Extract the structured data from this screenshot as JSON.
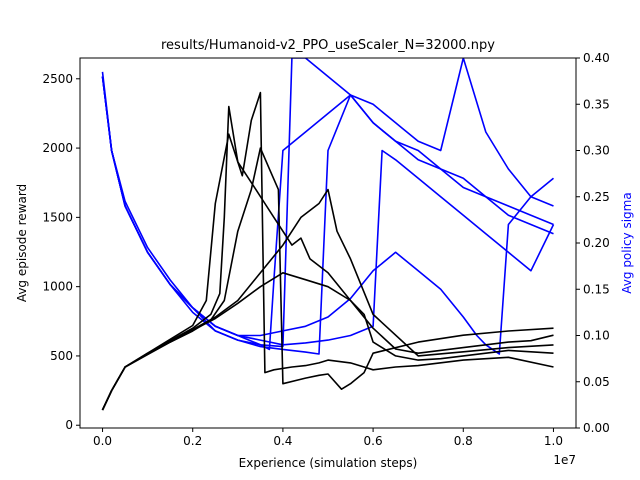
{
  "chart_data": {
    "type": "line",
    "title": "results/Humanoid-v2_PPO_useScaler_N=32000.npy",
    "xlabel": "Experience (simulation steps)",
    "ylabel_left": "Avg episode reward",
    "ylabel_right": "Avg policy sigma",
    "x_multiplier_label": "1e7",
    "xlim": [
      -0.05,
      1.05
    ],
    "ylim_left": [
      -20,
      2650
    ],
    "ylim_right": [
      0.0,
      0.4
    ],
    "xticks": [
      0.0,
      0.2,
      0.4,
      0.6,
      0.8,
      1.0
    ],
    "xtick_labels": [
      "0.0",
      "0.2",
      "0.4",
      "0.6",
      "0.8",
      "1.0"
    ],
    "yticks_left": [
      0,
      500,
      1000,
      1500,
      2000,
      2500
    ],
    "ytick_labels_left": [
      "0",
      "500",
      "1000",
      "1500",
      "2000",
      "2500"
    ],
    "yticks_right": [
      0.0,
      0.05,
      0.1,
      0.15,
      0.2,
      0.25,
      0.3,
      0.35,
      0.4
    ],
    "ytick_labels_right": [
      "0.00",
      "0.05",
      "0.10",
      "0.15",
      "0.20",
      "0.25",
      "0.30",
      "0.35",
      "0.40"
    ],
    "grid": false,
    "colors": {
      "reward": "#000000",
      "sigma": "#0000ff"
    },
    "reward_series": [
      {
        "x": [
          0.0,
          0.02,
          0.05,
          0.1,
          0.15,
          0.2,
          0.24,
          0.26,
          0.27,
          0.28,
          0.3,
          0.34,
          0.36,
          0.38,
          0.4,
          0.42,
          0.44,
          0.46,
          0.5,
          0.55,
          0.6,
          0.65,
          0.7,
          0.8,
          0.9,
          0.95,
          1.0
        ],
        "y": [
          110,
          250,
          420,
          520,
          610,
          700,
          800,
          950,
          1500,
          2300,
          1900,
          1700,
          1600,
          1500,
          1400,
          1300,
          1350,
          1200,
          1100,
          900,
          700,
          550,
          520,
          560,
          600,
          610,
          650
        ]
      },
      {
        "x": [
          0.0,
          0.02,
          0.05,
          0.1,
          0.15,
          0.2,
          0.23,
          0.25,
          0.28,
          0.31,
          0.33,
          0.35,
          0.36,
          0.38,
          0.42,
          0.45,
          0.48,
          0.5,
          0.55,
          0.58,
          0.6,
          0.65,
          0.7,
          0.8,
          0.9,
          1.0
        ],
        "y": [
          110,
          250,
          420,
          520,
          620,
          720,
          900,
          1600,
          2100,
          1800,
          2200,
          2400,
          380,
          400,
          420,
          430,
          450,
          470,
          450,
          420,
          400,
          420,
          430,
          470,
          490,
          420
        ]
      },
      {
        "x": [
          0.0,
          0.02,
          0.05,
          0.1,
          0.15,
          0.2,
          0.24,
          0.27,
          0.3,
          0.33,
          0.35,
          0.37,
          0.39,
          0.4,
          0.45,
          0.48,
          0.5,
          0.53,
          0.55,
          0.58,
          0.6,
          0.7,
          0.8,
          0.9,
          1.0
        ],
        "y": [
          110,
          250,
          420,
          510,
          600,
          680,
          760,
          900,
          1400,
          1700,
          2000,
          1850,
          1700,
          300,
          340,
          360,
          370,
          260,
          300,
          380,
          520,
          600,
          650,
          680,
          700
        ]
      },
      {
        "x": [
          0.0,
          0.02,
          0.05,
          0.1,
          0.15,
          0.2,
          0.25,
          0.3,
          0.35,
          0.4,
          0.44,
          0.48,
          0.5,
          0.52,
          0.55,
          0.6,
          0.7,
          0.8,
          0.9,
          1.0
        ],
        "y": [
          110,
          250,
          420,
          515,
          605,
          690,
          780,
          900,
          1100,
          1300,
          1500,
          1600,
          1700,
          1400,
          1200,
          800,
          500,
          530,
          560,
          580
        ]
      },
      {
        "x": [
          0.0,
          0.02,
          0.05,
          0.1,
          0.15,
          0.2,
          0.25,
          0.3,
          0.35,
          0.4,
          0.45,
          0.5,
          0.55,
          0.58,
          0.6,
          0.65,
          0.7,
          0.75,
          0.8,
          0.9,
          1.0
        ],
        "y": [
          110,
          250,
          420,
          512,
          600,
          685,
          770,
          880,
          1000,
          1100,
          1050,
          1000,
          900,
          800,
          600,
          500,
          470,
          480,
          500,
          540,
          520
        ]
      }
    ],
    "sigma_series": [
      {
        "x": [
          0.0,
          0.02,
          0.05,
          0.1,
          0.15,
          0.2,
          0.25,
          0.3,
          0.35,
          0.37,
          0.38,
          0.4,
          0.45,
          0.5,
          0.55,
          0.6,
          0.65,
          0.7,
          0.75,
          0.8,
          0.85,
          0.9,
          0.95,
          1.0
        ],
        "y": [
          0.38,
          0.3,
          0.24,
          0.19,
          0.155,
          0.13,
          0.11,
          0.1,
          0.09,
          0.085,
          0.16,
          0.3,
          0.32,
          0.34,
          0.36,
          0.33,
          0.31,
          0.29,
          0.28,
          0.26,
          0.25,
          0.24,
          0.23,
          0.22
        ]
      },
      {
        "x": [
          0.0,
          0.02,
          0.05,
          0.1,
          0.15,
          0.2,
          0.25,
          0.3,
          0.35,
          0.4,
          0.42,
          0.45,
          0.5,
          0.55,
          0.6,
          0.65,
          0.7,
          0.75,
          0.8,
          0.85,
          0.9,
          0.95,
          1.0
        ],
        "y": [
          0.385,
          0.3,
          0.245,
          0.195,
          0.16,
          0.13,
          0.105,
          0.095,
          0.09,
          0.088,
          0.4,
          0.4,
          0.38,
          0.36,
          0.33,
          0.31,
          0.3,
          0.28,
          0.27,
          0.25,
          0.23,
          0.22,
          0.21
        ]
      },
      {
        "x": [
          0.0,
          0.02,
          0.05,
          0.1,
          0.15,
          0.2,
          0.25,
          0.3,
          0.35,
          0.4,
          0.45,
          0.48,
          0.5,
          0.55,
          0.6,
          0.65,
          0.7,
          0.75,
          0.78,
          0.8,
          0.85,
          0.9,
          0.95,
          1.0
        ],
        "y": [
          0.38,
          0.3,
          0.24,
          0.19,
          0.155,
          0.125,
          0.105,
          0.095,
          0.088,
          0.085,
          0.082,
          0.08,
          0.3,
          0.36,
          0.35,
          0.33,
          0.31,
          0.3,
          0.36,
          0.4,
          0.32,
          0.28,
          0.25,
          0.24
        ]
      },
      {
        "x": [
          0.0,
          0.02,
          0.05,
          0.1,
          0.15,
          0.2,
          0.25,
          0.3,
          0.35,
          0.4,
          0.45,
          0.5,
          0.55,
          0.6,
          0.62,
          0.65,
          0.7,
          0.75,
          0.8,
          0.85,
          0.9,
          0.95,
          1.0
        ],
        "y": [
          0.38,
          0.3,
          0.24,
          0.19,
          0.155,
          0.13,
          0.11,
          0.1,
          0.095,
          0.09,
          0.092,
          0.095,
          0.1,
          0.11,
          0.3,
          0.29,
          0.27,
          0.25,
          0.23,
          0.21,
          0.19,
          0.17,
          0.22
        ]
      },
      {
        "x": [
          0.0,
          0.02,
          0.05,
          0.1,
          0.15,
          0.2,
          0.25,
          0.3,
          0.35,
          0.4,
          0.45,
          0.5,
          0.55,
          0.6,
          0.65,
          0.7,
          0.75,
          0.8,
          0.83,
          0.85,
          0.88,
          0.9,
          0.95,
          1.0
        ],
        "y": [
          0.38,
          0.3,
          0.24,
          0.19,
          0.155,
          0.13,
          0.11,
          0.1,
          0.1,
          0.105,
          0.11,
          0.12,
          0.14,
          0.17,
          0.19,
          0.17,
          0.15,
          0.12,
          0.1,
          0.09,
          0.08,
          0.22,
          0.25,
          0.27
        ]
      }
    ]
  }
}
